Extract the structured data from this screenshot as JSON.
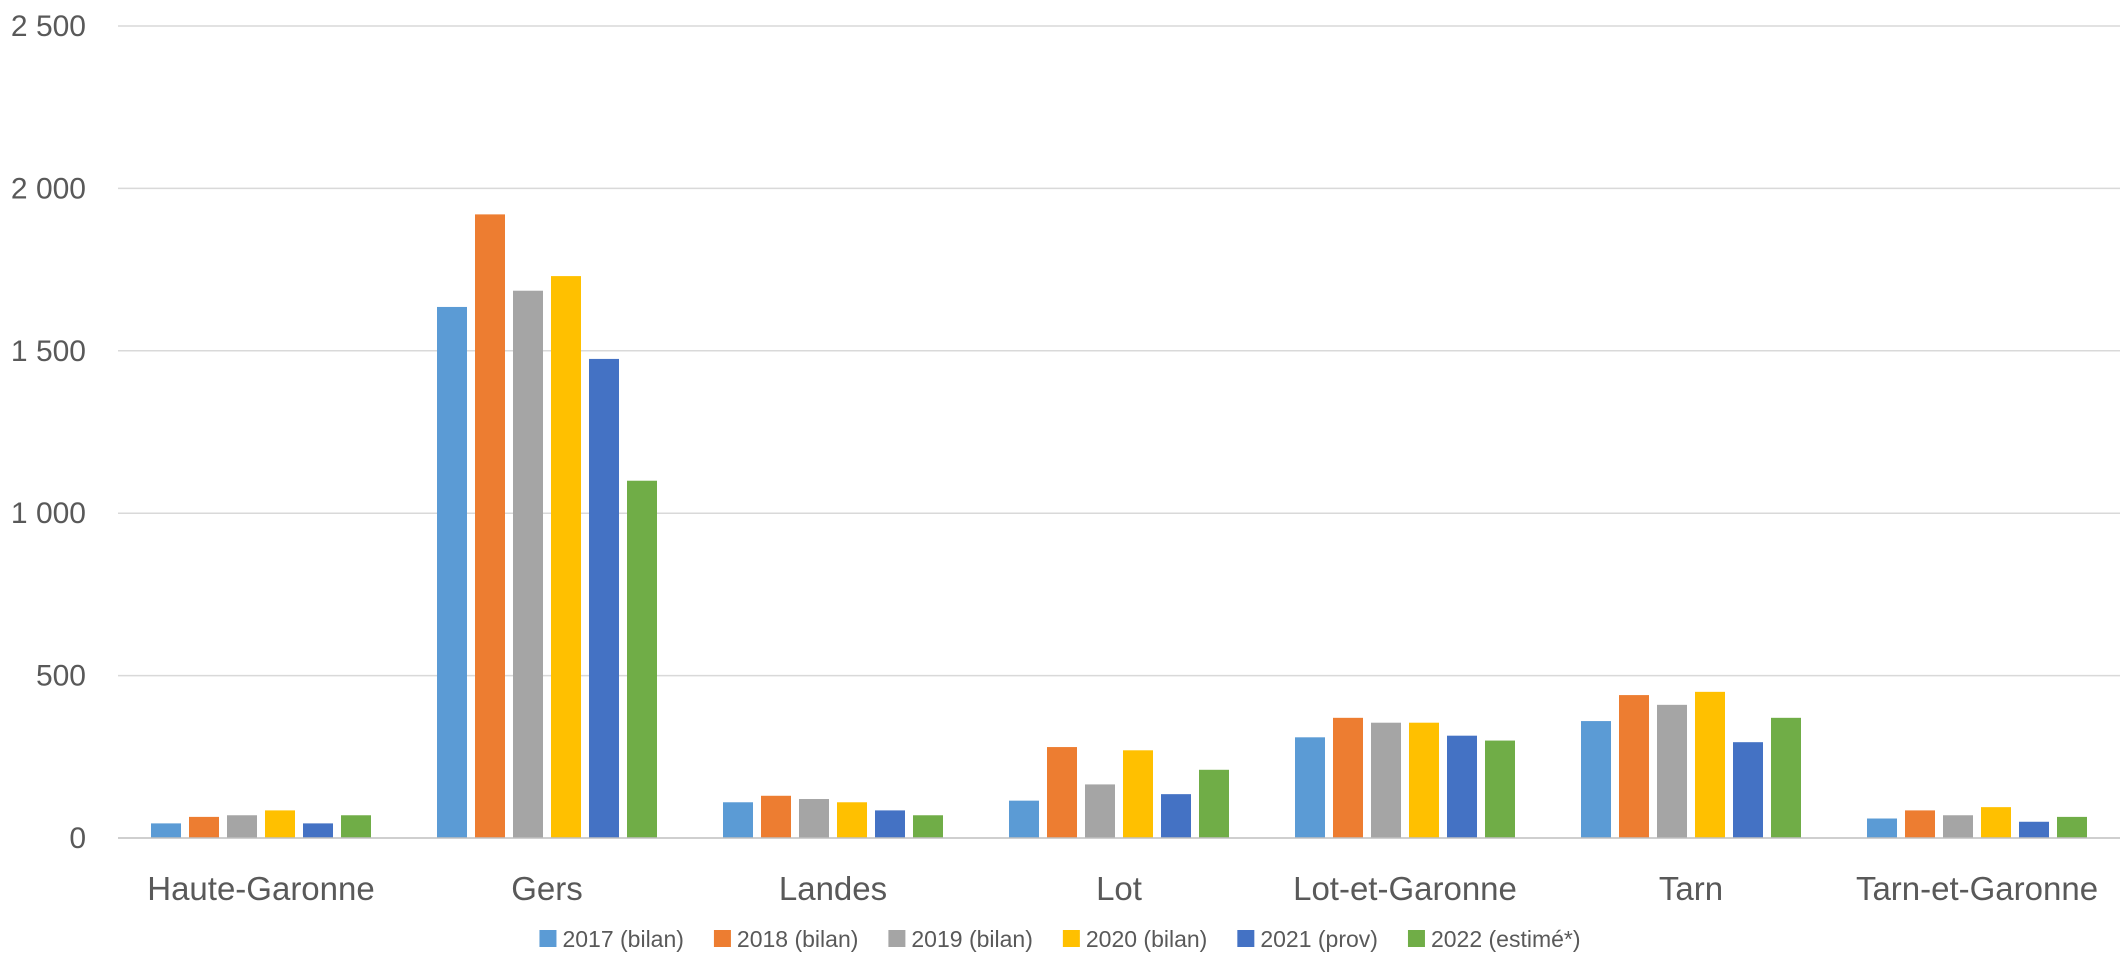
{
  "chart_data": {
    "type": "bar",
    "title": "",
    "xlabel": "",
    "ylabel": "",
    "ylim": [
      0,
      2500
    ],
    "yticks": [
      0,
      500,
      1000,
      1500,
      2000,
      2500
    ],
    "ytick_labels": [
      "0",
      "500",
      "1 000",
      "1 500",
      "2 000",
      "2 500"
    ],
    "grid": true,
    "legend_position": "bottom",
    "categories": [
      "Haute-Garonne",
      "Gers",
      "Landes",
      "Lot",
      "Lot-et-Garonne",
      "Tarn",
      "Tarn-et-Garonne"
    ],
    "series": [
      {
        "name": "2017 (bilan)",
        "color": "#5b9bd5",
        "values": [
          45,
          1635,
          110,
          115,
          310,
          360,
          60
        ]
      },
      {
        "name": "2018 (bilan)",
        "color": "#ed7d31",
        "values": [
          65,
          1920,
          130,
          280,
          370,
          440,
          85
        ]
      },
      {
        "name": "2019 (bilan)",
        "color": "#a5a5a5",
        "values": [
          70,
          1685,
          120,
          165,
          355,
          410,
          70
        ]
      },
      {
        "name": "2020 (bilan)",
        "color": "#ffc000",
        "values": [
          85,
          1730,
          110,
          270,
          355,
          450,
          95
        ]
      },
      {
        "name": "2021 (prov)",
        "color": "#4472c4",
        "values": [
          45,
          1475,
          85,
          135,
          315,
          295,
          50
        ]
      },
      {
        "name": "2022 (estimé*)",
        "color": "#70ad47",
        "values": [
          70,
          1100,
          70,
          210,
          300,
          370,
          65
        ]
      }
    ]
  }
}
